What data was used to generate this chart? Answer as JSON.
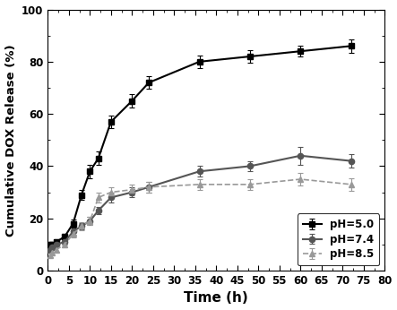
{
  "title": "",
  "xlabel": "Time (h)",
  "ylabel": "Cumulative DOX Release (%)",
  "xlim": [
    0,
    80
  ],
  "ylim": [
    0,
    100
  ],
  "xticks": [
    0,
    5,
    10,
    15,
    20,
    25,
    30,
    35,
    40,
    45,
    50,
    55,
    60,
    65,
    70,
    75,
    80
  ],
  "yticks": [
    0,
    20,
    40,
    60,
    80,
    100
  ],
  "series": [
    {
      "label": "pH=5.0",
      "color": "#000000",
      "marker": "s",
      "linestyle": "-",
      "linewidth": 1.5,
      "markersize": 4.5,
      "x": [
        0.5,
        1,
        2,
        4,
        6,
        8,
        10,
        12,
        15,
        20,
        24,
        36,
        48,
        60,
        72
      ],
      "y": [
        10,
        10,
        11,
        13,
        18,
        29,
        38,
        43,
        57,
        65,
        72,
        80,
        82,
        84,
        86
      ],
      "yerr": [
        1.0,
        1.0,
        1.0,
        1.2,
        1.5,
        2.0,
        2.5,
        2.5,
        2.5,
        2.5,
        2.5,
        2.5,
        2.5,
        2.0,
        2.5
      ]
    },
    {
      "label": "pH=7.4",
      "color": "#555555",
      "marker": "o",
      "linestyle": "-",
      "linewidth": 1.5,
      "markersize": 4.5,
      "x": [
        0.5,
        1,
        2,
        4,
        6,
        8,
        10,
        12,
        15,
        20,
        24,
        36,
        48,
        60,
        72
      ],
      "y": [
        8,
        9,
        10,
        11,
        15,
        17,
        19,
        23,
        28,
        30,
        32,
        38,
        40,
        44,
        42
      ],
      "yerr": [
        0.8,
        0.8,
        0.8,
        1.0,
        1.2,
        1.2,
        1.5,
        1.5,
        2.0,
        2.0,
        2.0,
        2.0,
        2.0,
        3.5,
        2.5
      ]
    },
    {
      "label": "pH=8.5",
      "color": "#999999",
      "marker": "^",
      "linestyle": "--",
      "linewidth": 1.2,
      "markersize": 4.5,
      "x": [
        0.5,
        1,
        2,
        4,
        6,
        8,
        10,
        12,
        15,
        20,
        24,
        36,
        48,
        60,
        72
      ],
      "y": [
        6,
        7,
        8,
        10,
        14,
        17,
        19,
        28,
        30,
        31,
        32,
        33,
        33,
        35,
        33
      ],
      "yerr": [
        0.8,
        0.8,
        0.8,
        1.0,
        1.2,
        1.5,
        1.5,
        2.0,
        2.0,
        2.0,
        2.0,
        2.0,
        2.0,
        2.5,
        2.5
      ]
    }
  ],
  "legend_loc": "lower right",
  "legend_fontsize": 8.5,
  "background_color": "#ffffff",
  "figure_facecolor": "#ffffff"
}
